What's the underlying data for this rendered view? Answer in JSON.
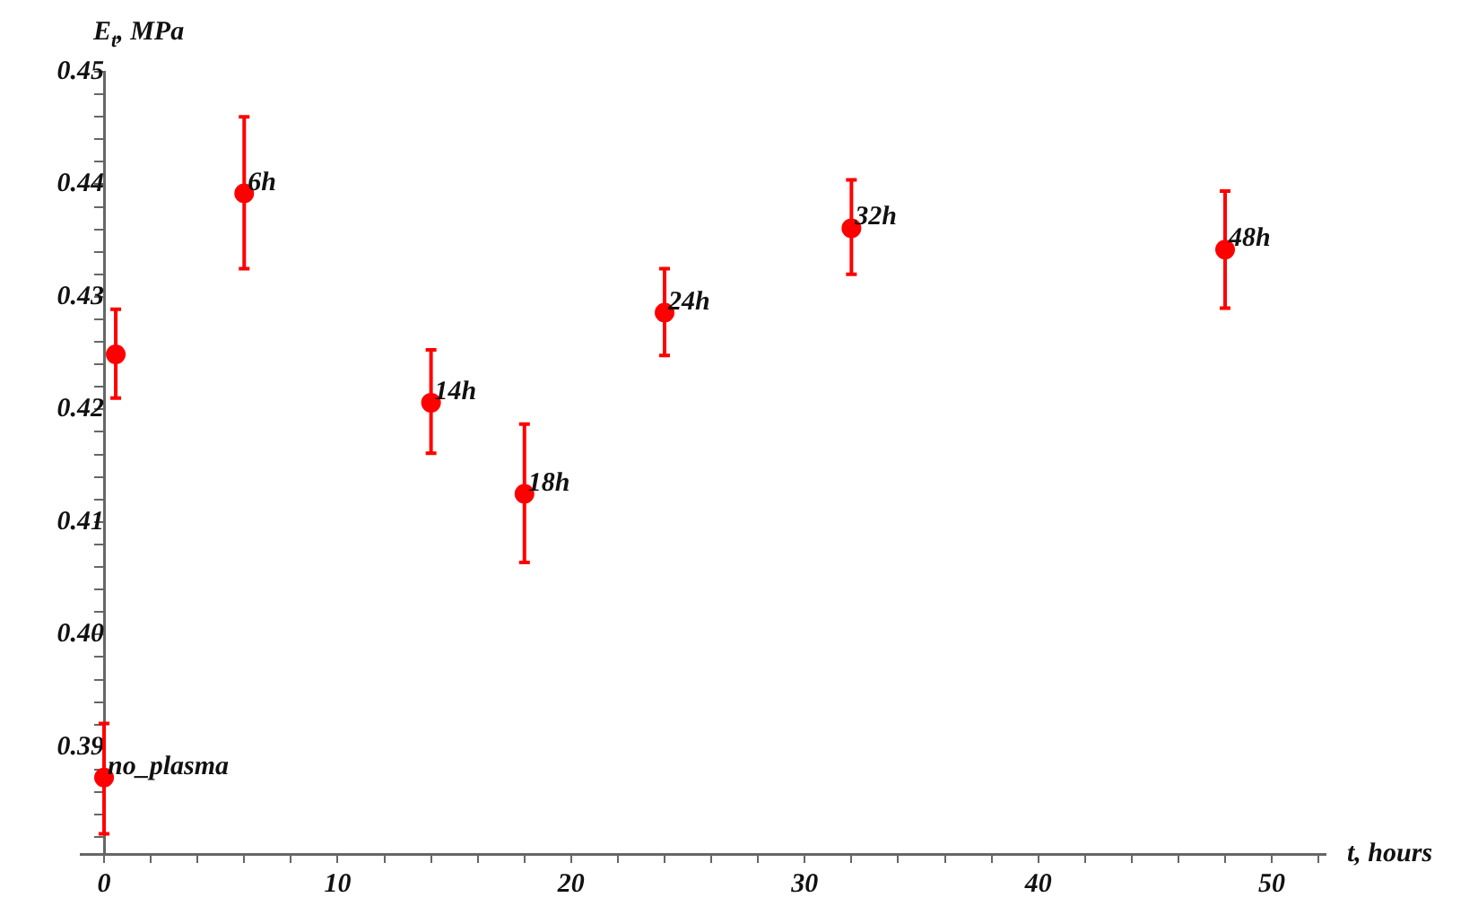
{
  "chart_data": {
    "type": "scatter",
    "xlabel": "t, hours",
    "ylabel": "E$_{t}$, MPa",
    "x": [
      0,
      0.5,
      6,
      14,
      18,
      24,
      32,
      48
    ],
    "values": [
      0.3873,
      0.4249,
      0.4392,
      0.4206,
      0.4125,
      0.4286,
      0.4361,
      0.4342
    ],
    "errors": [
      [
        0.3823,
        0.3921
      ],
      [
        0.421,
        0.4289
      ],
      [
        0.4325,
        0.446
      ],
      [
        0.4161,
        0.4253
      ],
      [
        0.4064,
        0.4187
      ],
      [
        0.4248,
        0.4325
      ],
      [
        0.432,
        0.4404
      ],
      [
        0.429,
        0.4394
      ]
    ],
    "color": "#ff0000",
    "marker": "circle",
    "xlim": [
      -1,
      52.3
    ],
    "ylim": [
      0.3805,
      0.45
    ],
    "xticks": [
      0,
      {
        "value": 2,
        "label": null
      },
      {
        "value": 4,
        "label": null
      },
      {
        "value": 6,
        "label": null
      },
      {
        "value": 8,
        "label": null
      },
      10,
      {
        "value": 12,
        "label": null
      },
      {
        "value": 14,
        "label": null
      },
      {
        "value": 16,
        "label": null
      },
      {
        "value": 18,
        "label": null
      },
      20,
      {
        "value": 22,
        "label": null
      },
      {
        "value": 24,
        "label": null
      },
      {
        "value": 26,
        "label": null
      },
      {
        "value": 28,
        "label": null
      },
      30,
      {
        "value": 32,
        "label": null
      },
      {
        "value": 34,
        "label": null
      },
      {
        "value": 36,
        "label": null
      },
      {
        "value": 38,
        "label": null
      },
      40,
      {
        "value": 42,
        "label": null
      },
      {
        "value": 44,
        "label": null
      },
      {
        "value": 46,
        "label": null
      },
      {
        "value": 48,
        "label": null
      },
      50,
      {
        "value": 52,
        "label": null
      }
    ],
    "yticks": [
      {
        "value": 0.382,
        "label": null
      },
      {
        "value": 0.384,
        "label": null
      },
      {
        "value": 0.386,
        "label": null
      },
      {
        "value": 0.388,
        "label": null
      },
      0.39,
      {
        "value": 0.392,
        "label": null
      },
      {
        "value": 0.394,
        "label": null
      },
      {
        "value": 0.396,
        "label": null
      },
      {
        "value": 0.398,
        "label": null
      },
      {
        "value": 0.4,
        "label": "0.40"
      },
      {
        "value": 0.402,
        "label": null
      },
      {
        "value": 0.404,
        "label": null
      },
      {
        "value": 0.406,
        "label": null
      },
      {
        "value": 0.408,
        "label": null
      },
      0.41,
      {
        "value": 0.412,
        "label": null
      },
      {
        "value": 0.414,
        "label": null
      },
      {
        "value": 0.416,
        "label": null
      },
      {
        "value": 0.418,
        "label": null
      },
      0.42,
      {
        "value": 0.422,
        "label": null
      },
      {
        "value": 0.424,
        "label": null
      },
      {
        "value": 0.426,
        "label": null
      },
      {
        "value": 0.428,
        "label": null
      },
      0.43,
      {
        "value": 0.432,
        "label": null
      },
      {
        "value": 0.434,
        "label": null
      },
      {
        "value": 0.436,
        "label": null
      },
      {
        "value": 0.438,
        "label": null
      },
      0.44,
      {
        "value": 0.442,
        "label": null
      },
      {
        "value": 0.444,
        "label": null
      },
      {
        "value": 0.446,
        "label": null
      },
      {
        "value": 0.448,
        "label": null
      },
      0.45
    ],
    "annotations": [
      {
        "text": "no_plasma",
        "x": 0,
        "y": 0.3873
      },
      {
        "text": "6h",
        "x": 6,
        "y": 0.4392
      },
      {
        "text": "14h",
        "x": 14,
        "y": 0.4206
      },
      {
        "text": "18h",
        "x": 18,
        "y": 0.4125
      },
      {
        "text": "24h",
        "x": 24,
        "y": 0.4286
      },
      {
        "text": "32h",
        "x": 32,
        "y": 0.4361
      },
      {
        "text": "48h",
        "x": 48,
        "y": 0.4342
      }
    ]
  }
}
